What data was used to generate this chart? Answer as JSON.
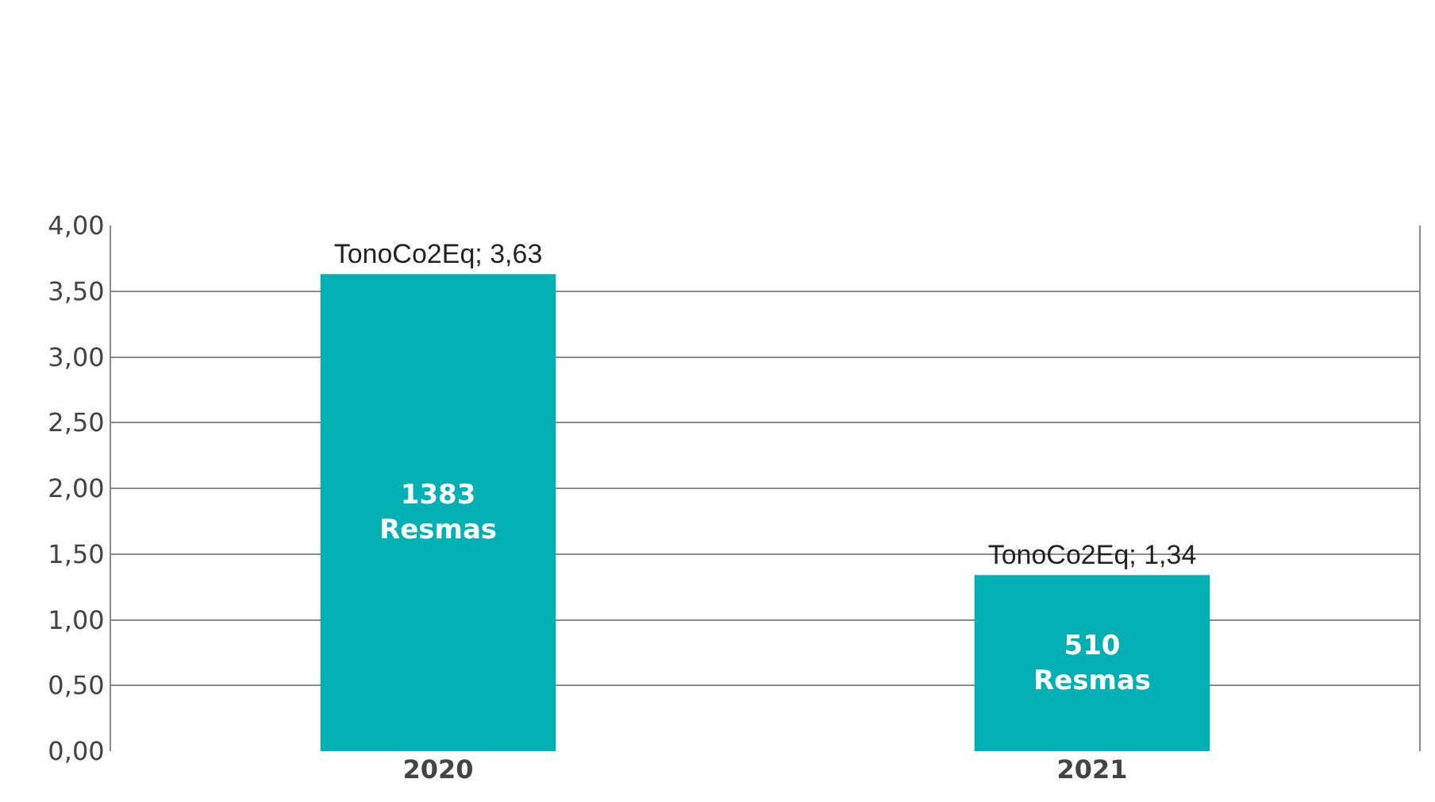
{
  "chart_data": {
    "type": "bar",
    "categories": [
      "2020",
      "2021"
    ],
    "values": [
      3.63,
      1.34
    ],
    "color": "#00b0b2",
    "value_labels": [
      "TonoCo2Eq; 3,63",
      "TonoCo2Eq; 1,34"
    ],
    "annotations": [
      "1383\nResmas",
      "510\nResmas"
    ],
    "ylim": [
      0,
      4
    ],
    "yticks": [
      {
        "value": 0,
        "label": "0,00"
      },
      {
        "value": 0.5,
        "label": "0,50"
      },
      {
        "value": 1,
        "label": "1,00"
      },
      {
        "value": 1.5,
        "label": "1,50"
      },
      {
        "value": 2,
        "label": "2,00"
      },
      {
        "value": 2.5,
        "label": "2,50"
      },
      {
        "value": 3,
        "label": "3,00"
      },
      {
        "value": 3.5,
        "label": "3,50"
      },
      {
        "value": 4,
        "label": "4,00"
      }
    ],
    "grid": "y"
  }
}
